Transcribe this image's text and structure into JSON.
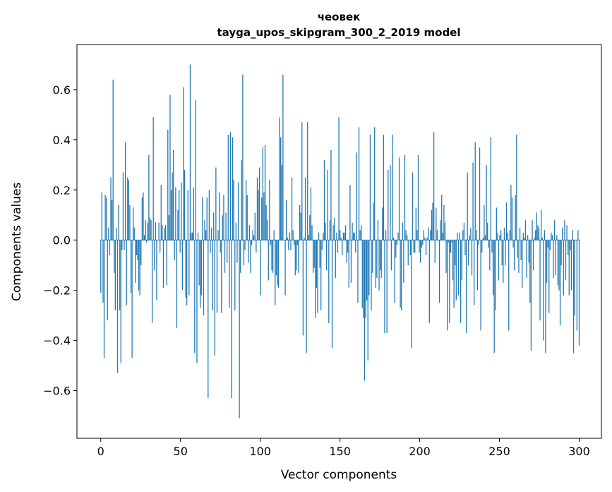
{
  "chart_data": {
    "type": "bar",
    "title_line1": "чеовек",
    "title_line2": "tayga_upos_skipgram_300_2_2019 model",
    "xlabel": "Vector components",
    "ylabel": "Components values",
    "xlim": [
      -14.95,
      313.95
    ],
    "ylim": [
      -0.79,
      0.78
    ],
    "xticks": [
      {
        "value": 0,
        "label": "0"
      },
      {
        "value": 50,
        "label": "50"
      },
      {
        "value": 100,
        "label": "100"
      },
      {
        "value": 150,
        "label": "150"
      },
      {
        "value": 200,
        "label": "200"
      },
      {
        "value": 250,
        "label": "250"
      },
      {
        "value": 300,
        "label": "300"
      }
    ],
    "yticks": [
      {
        "value": -0.6,
        "label": "−0.6"
      },
      {
        "value": -0.4,
        "label": "−0.4"
      },
      {
        "value": -0.2,
        "label": "−0.2"
      },
      {
        "value": 0.0,
        "label": "0.0"
      },
      {
        "value": 0.2,
        "label": "0.2"
      },
      {
        "value": 0.4,
        "label": "0.4"
      },
      {
        "value": 0.6,
        "label": "0.6"
      }
    ],
    "bar_color": "#1f77b4",
    "values": [
      -0.21,
      0.19,
      -0.25,
      -0.47,
      0.18,
      0.17,
      -0.32,
      0.05,
      -0.06,
      0.25,
      0.16,
      0.64,
      -0.13,
      -0.28,
      0.05,
      -0.53,
      0.14,
      -0.28,
      -0.49,
      -0.04,
      0.27,
      -0.04,
      0.39,
      -0.26,
      0.25,
      0.24,
      0.14,
      -0.21,
      -0.47,
      0.13,
      0.05,
      -0.17,
      -0.06,
      -0.08,
      -0.2,
      -0.22,
      -0.1,
      0.17,
      0.19,
      0.02,
      0.08,
      -0.01,
      0.07,
      0.34,
      0.09,
      0.08,
      -0.33,
      0.49,
      -0.12,
      0.07,
      -0.24,
      0.0,
      0.07,
      -0.05,
      0.22,
      0.06,
      -0.19,
      0.05,
      0.06,
      -0.18,
      0.44,
      0.1,
      0.58,
      0.2,
      0.27,
      0.36,
      -0.08,
      0.21,
      -0.35,
      0.12,
      0.2,
      -0.05,
      0.23,
      -0.2,
      0.61,
      0.28,
      -0.23,
      -0.26,
      0.2,
      -0.22,
      0.7,
      0.03,
      0.03,
      0.21,
      -0.45,
      0.56,
      -0.49,
      0.03,
      -0.18,
      -0.27,
      -0.22,
      0.17,
      -0.3,
      0.08,
      0.04,
      0.17,
      -0.63,
      0.2,
      -0.05,
      0.05,
      -0.28,
      0.11,
      -0.46,
      0.29,
      -0.29,
      0.04,
      0.19,
      -0.05,
      -0.29,
      0.1,
      0.18,
      -0.13,
      0.11,
      -0.09,
      0.42,
      -0.27,
      0.43,
      -0.63,
      0.41,
      0.24,
      -0.28,
      0.07,
      -0.09,
      0.23,
      -0.71,
      -0.13,
      0.32,
      0.66,
      -0.1,
      -0.04,
      0.24,
      0.18,
      -0.09,
      0.06,
      -0.13,
      -0.02,
      0.04,
      0.02,
      0.11,
      -0.05,
      0.25,
      0.2,
      0.29,
      -0.22,
      0.17,
      0.37,
      0.19,
      0.38,
      0.14,
      0.08,
      -0.16,
      0.24,
      -0.02,
      -0.12,
      -0.13,
      0.04,
      -0.26,
      -0.14,
      -0.18,
      -0.19,
      0.49,
      0.41,
      0.3,
      0.66,
      0.0,
      -0.22,
      0.16,
      0.01,
      -0.04,
      0.03,
      -0.04,
      0.25,
      0.04,
      -0.02,
      -0.14,
      -0.12,
      -0.02,
      -0.13,
      0.14,
      0.11,
      0.47,
      -0.38,
      0.01,
      0.25,
      -0.45,
      0.47,
      0.02,
      0.1,
      0.21,
      0.06,
      -0.13,
      -0.11,
      -0.31,
      -0.19,
      -0.29,
      0.03,
      -0.11,
      -0.28,
      -0.04,
      0.03,
      0.32,
      0.07,
      -0.12,
      0.28,
      -0.33,
      0.08,
      0.36,
      -0.43,
      0.06,
      0.09,
      -0.15,
      0.03,
      -0.05,
      0.49,
      0.04,
      0.01,
      -0.06,
      0.03,
      0.03,
      0.06,
      -0.09,
      -0.05,
      -0.19,
      0.22,
      -0.17,
      0.07,
      0.03,
      0.03,
      -0.05,
      0.35,
      -0.25,
      0.45,
      0.04,
      0.06,
      -0.27,
      -0.31,
      -0.56,
      -0.31,
      -0.24,
      -0.48,
      -0.22,
      0.42,
      -0.28,
      -0.13,
      0.15,
      0.45,
      -0.19,
      -0.15,
      0.08,
      -0.2,
      -0.12,
      -0.15,
      0.13,
      0.42,
      -0.37,
      0.04,
      -0.37,
      0.28,
      0.0,
      0.3,
      -0.12,
      0.42,
      0.01,
      -0.25,
      -0.07,
      -0.02,
      0.03,
      0.33,
      -0.27,
      -0.28,
      0.07,
      -0.17,
      0.34,
      0.04,
      0.02,
      -0.1,
      0.0,
      -0.06,
      -0.43,
      0.27,
      -0.05,
      -0.05,
      0.13,
      0.04,
      0.34,
      -0.05,
      -0.09,
      -0.03,
      -0.02,
      0.04,
      0.01,
      -0.06,
      0.01,
      0.05,
      -0.33,
      0.04,
      0.12,
      0.15,
      0.43,
      -0.09,
      0.13,
      0.04,
      0.0,
      -0.25,
      0.08,
      0.18,
      0.03,
      0.14,
      0.07,
      -0.13,
      -0.36,
      -0.01,
      -0.33,
      -0.05,
      -0.01,
      -0.16,
      -0.27,
      -0.1,
      -0.24,
      0.03,
      -0.22,
      0.03,
      -0.33,
      -0.16,
      0.04,
      0.07,
      -0.06,
      -0.37,
      0.27,
      -0.1,
      0.02,
      0.05,
      -0.14,
      0.31,
      -0.26,
      0.39,
      0.04,
      -0.2,
      -0.02,
      0.37,
      -0.36,
      -0.05,
      0.01,
      0.14,
      0.02,
      0.3,
      0.07,
      -0.03,
      -0.12,
      0.41,
      -0.05,
      -0.22,
      -0.45,
      -0.28,
      0.13,
      0.03,
      -0.16,
      0.02,
      0.04,
      -0.1,
      -0.17,
      0.05,
      -0.1,
      0.15,
      0.03,
      -0.36,
      0.04,
      0.22,
      0.17,
      -0.03,
      -0.12,
      0.18,
      0.42,
      -0.07,
      -0.13,
      0.05,
      -0.08,
      -0.19,
      0.03,
      0.01,
      0.08,
      -0.15,
      0.02,
      -0.09,
      -0.25,
      -0.44,
      0.08,
      -0.12,
      0.01,
      0.04,
      0.11,
      0.06,
      0.05,
      -0.32,
      0.12,
      0.01,
      -0.4,
      0.04,
      -0.45,
      -0.17,
      -0.03,
      -0.29,
      -0.04,
      0.03,
      0.02,
      -0.15,
      0.08,
      -0.14,
      0.02,
      -0.18,
      -0.2,
      -0.34,
      -0.1,
      0.05,
      -0.22,
      0.08,
      -0.16,
      0.06,
      -0.06,
      -0.22,
      -0.04,
      -0.2,
      0.04,
      -0.45,
      -0.3,
      0.0,
      -0.36,
      0.04,
      -0.42
    ]
  }
}
